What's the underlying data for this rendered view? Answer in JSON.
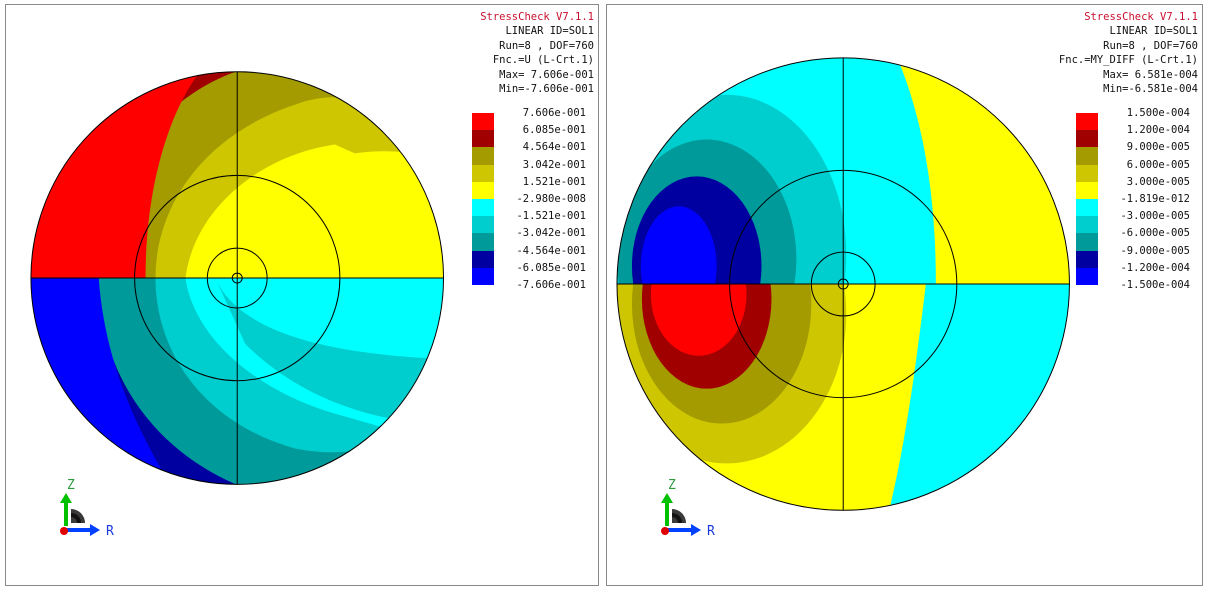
{
  "panels": [
    {
      "id": "left",
      "info": {
        "title": "StressCheck V7.1.1",
        "line1": "LINEAR ID=SOL1",
        "line2": "Run=8 , DOF=760",
        "line3": "Fnc.=U (L-Crt.1)",
        "max": "Max= 7.606e-001",
        "min": "Min=-7.606e-001"
      },
      "legend": [
        {
          "value": "7.606e-001",
          "color": "#ff0000"
        },
        {
          "value": "6.085e-001",
          "color": "#a00000"
        },
        {
          "value": "4.564e-001",
          "color": "#a39b00"
        },
        {
          "value": "3.042e-001",
          "color": "#cdc600"
        },
        {
          "value": "1.521e-001",
          "color": "#ffff00"
        },
        {
          "value": "-2.980e-008",
          "color": "#00ffff"
        },
        {
          "value": "-1.521e-001",
          "color": "#00cdcd"
        },
        {
          "value": "-3.042e-001",
          "color": "#009a9a"
        },
        {
          "value": "-4.564e-001",
          "color": "#0000a0"
        },
        {
          "value": "-6.085e-001",
          "color": "#0000ff"
        },
        {
          "value": "-7.606e-001",
          "color": null
        }
      ]
    },
    {
      "id": "right",
      "info": {
        "title": "StressCheck V7.1.1",
        "line1": "LINEAR ID=SOL1",
        "line2": "Run=8 , DOF=760",
        "line3": "Fnc.=MY_DIFF (L-Crt.1)",
        "max": "Max= 6.581e-004",
        "min": "Min=-6.581e-004"
      },
      "legend": [
        {
          "value": "1.500e-004",
          "color": "#ff0000"
        },
        {
          "value": "1.200e-004",
          "color": "#a00000"
        },
        {
          "value": "9.000e-005",
          "color": "#a39b00"
        },
        {
          "value": "6.000e-005",
          "color": "#cdc600"
        },
        {
          "value": "3.000e-005",
          "color": "#ffff00"
        },
        {
          "value": "-1.819e-012",
          "color": "#00ffff"
        },
        {
          "value": "-3.000e-005",
          "color": "#00cdcd"
        },
        {
          "value": "-6.000e-005",
          "color": "#009a9a"
        },
        {
          "value": "-9.000e-005",
          "color": "#0000a0"
        },
        {
          "value": "-1.200e-004",
          "color": "#0000ff"
        },
        {
          "value": "-1.500e-004",
          "color": null
        }
      ]
    }
  ],
  "axes": {
    "z_label": "Z",
    "r_label": "R"
  },
  "colors": {
    "frame": "#8a8a8a",
    "title": "#c8102e",
    "mesh_line": "#000000"
  }
}
